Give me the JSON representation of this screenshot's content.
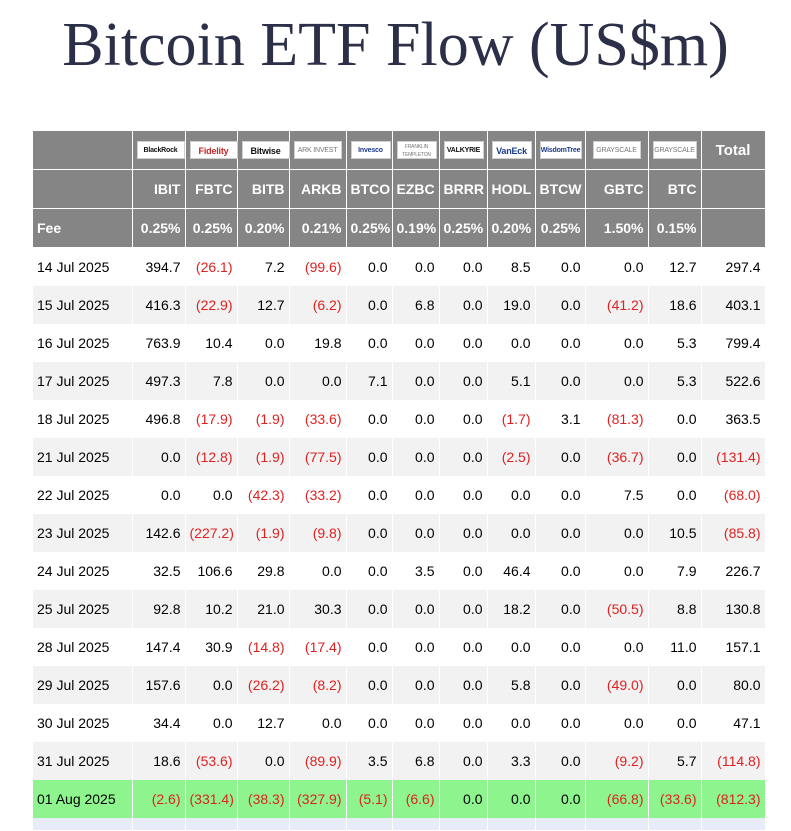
{
  "title": "Bitcoin ETF Flow (US$m)",
  "chart_data": {
    "type": "table",
    "issuers": [
      "BlackRock",
      "Fidelity",
      "Bitwise",
      "ARK INVEST",
      "Invesco",
      "FRANKLIN TEMPLETON",
      "VALKYRIE",
      "VanEck",
      "WisdomTree",
      "GRAYSCALE",
      "GRAYSCALE"
    ],
    "total_label": "Total",
    "tickers": [
      "IBIT",
      "FBTC",
      "BITB",
      "ARKB",
      "BTCO",
      "EZBC",
      "BRRR",
      "HODL",
      "BTCW",
      "GBTC",
      "BTC"
    ],
    "fee_label": "Fee",
    "fees": [
      "0.25%",
      "0.25%",
      "0.20%",
      "0.21%",
      "0.25%",
      "0.19%",
      "0.25%",
      "0.20%",
      "0.25%",
      "1.50%",
      "0.15%"
    ],
    "rows": [
      {
        "date": "14 Jul 2025",
        "values": [
          "394.7",
          "(26.1)",
          "7.2",
          "(99.6)",
          "0.0",
          "0.0",
          "0.0",
          "8.5",
          "0.0",
          "0.0",
          "12.7"
        ],
        "total": "297.4"
      },
      {
        "date": "15 Jul 2025",
        "values": [
          "416.3",
          "(22.9)",
          "12.7",
          "(6.2)",
          "0.0",
          "6.8",
          "0.0",
          "19.0",
          "0.0",
          "(41.2)",
          "18.6"
        ],
        "total": "403.1"
      },
      {
        "date": "16 Jul 2025",
        "values": [
          "763.9",
          "10.4",
          "0.0",
          "19.8",
          "0.0",
          "0.0",
          "0.0",
          "0.0",
          "0.0",
          "0.0",
          "5.3"
        ],
        "total": "799.4"
      },
      {
        "date": "17 Jul 2025",
        "values": [
          "497.3",
          "7.8",
          "0.0",
          "0.0",
          "7.1",
          "0.0",
          "0.0",
          "5.1",
          "0.0",
          "0.0",
          "5.3"
        ],
        "total": "522.6"
      },
      {
        "date": "18 Jul 2025",
        "values": [
          "496.8",
          "(17.9)",
          "(1.9)",
          "(33.6)",
          "0.0",
          "0.0",
          "0.0",
          "(1.7)",
          "3.1",
          "(81.3)",
          "0.0"
        ],
        "total": "363.5"
      },
      {
        "date": "21 Jul 2025",
        "values": [
          "0.0",
          "(12.8)",
          "(1.9)",
          "(77.5)",
          "0.0",
          "0.0",
          "0.0",
          "(2.5)",
          "0.0",
          "(36.7)",
          "0.0"
        ],
        "total": "(131.4)"
      },
      {
        "date": "22 Jul 2025",
        "values": [
          "0.0",
          "0.0",
          "(42.3)",
          "(33.2)",
          "0.0",
          "0.0",
          "0.0",
          "0.0",
          "0.0",
          "7.5",
          "0.0"
        ],
        "total": "(68.0)"
      },
      {
        "date": "23 Jul 2025",
        "values": [
          "142.6",
          "(227.2)",
          "(1.9)",
          "(9.8)",
          "0.0",
          "0.0",
          "0.0",
          "0.0",
          "0.0",
          "0.0",
          "10.5"
        ],
        "total": "(85.8)"
      },
      {
        "date": "24 Jul 2025",
        "values": [
          "32.5",
          "106.6",
          "29.8",
          "0.0",
          "0.0",
          "3.5",
          "0.0",
          "46.4",
          "0.0",
          "0.0",
          "7.9"
        ],
        "total": "226.7"
      },
      {
        "date": "25 Jul 2025",
        "values": [
          "92.8",
          "10.2",
          "21.0",
          "30.3",
          "0.0",
          "0.0",
          "0.0",
          "18.2",
          "0.0",
          "(50.5)",
          "8.8"
        ],
        "total": "130.8"
      },
      {
        "date": "28 Jul 2025",
        "values": [
          "147.4",
          "30.9",
          "(14.8)",
          "(17.4)",
          "0.0",
          "0.0",
          "0.0",
          "0.0",
          "0.0",
          "0.0",
          "11.0"
        ],
        "total": "157.1"
      },
      {
        "date": "29 Jul 2025",
        "values": [
          "157.6",
          "0.0",
          "(26.2)",
          "(8.2)",
          "0.0",
          "0.0",
          "0.0",
          "5.8",
          "0.0",
          "(49.0)",
          "0.0"
        ],
        "total": "80.0"
      },
      {
        "date": "30 Jul 2025",
        "values": [
          "34.4",
          "0.0",
          "12.7",
          "0.0",
          "0.0",
          "0.0",
          "0.0",
          "0.0",
          "0.0",
          "0.0",
          "0.0"
        ],
        "total": "47.1"
      },
      {
        "date": "31 Jul 2025",
        "values": [
          "18.6",
          "(53.6)",
          "0.0",
          "(89.9)",
          "3.5",
          "6.8",
          "0.0",
          "3.3",
          "0.0",
          "(9.2)",
          "5.7"
        ],
        "total": "(114.8)"
      },
      {
        "date": "01 Aug 2025",
        "values": [
          "(2.6)",
          "(331.4)",
          "(38.3)",
          "(327.9)",
          "(5.1)",
          "(6.6)",
          "0.0",
          "0.0",
          "0.0",
          "(66.8)",
          "(33.6)"
        ],
        "total": "(812.3)",
        "highlight": true
      }
    ]
  },
  "colors": {
    "header_bg": "#858585",
    "negative": "#e02020",
    "highlight_row": "#8ef58e",
    "title": "#2b2f47"
  }
}
